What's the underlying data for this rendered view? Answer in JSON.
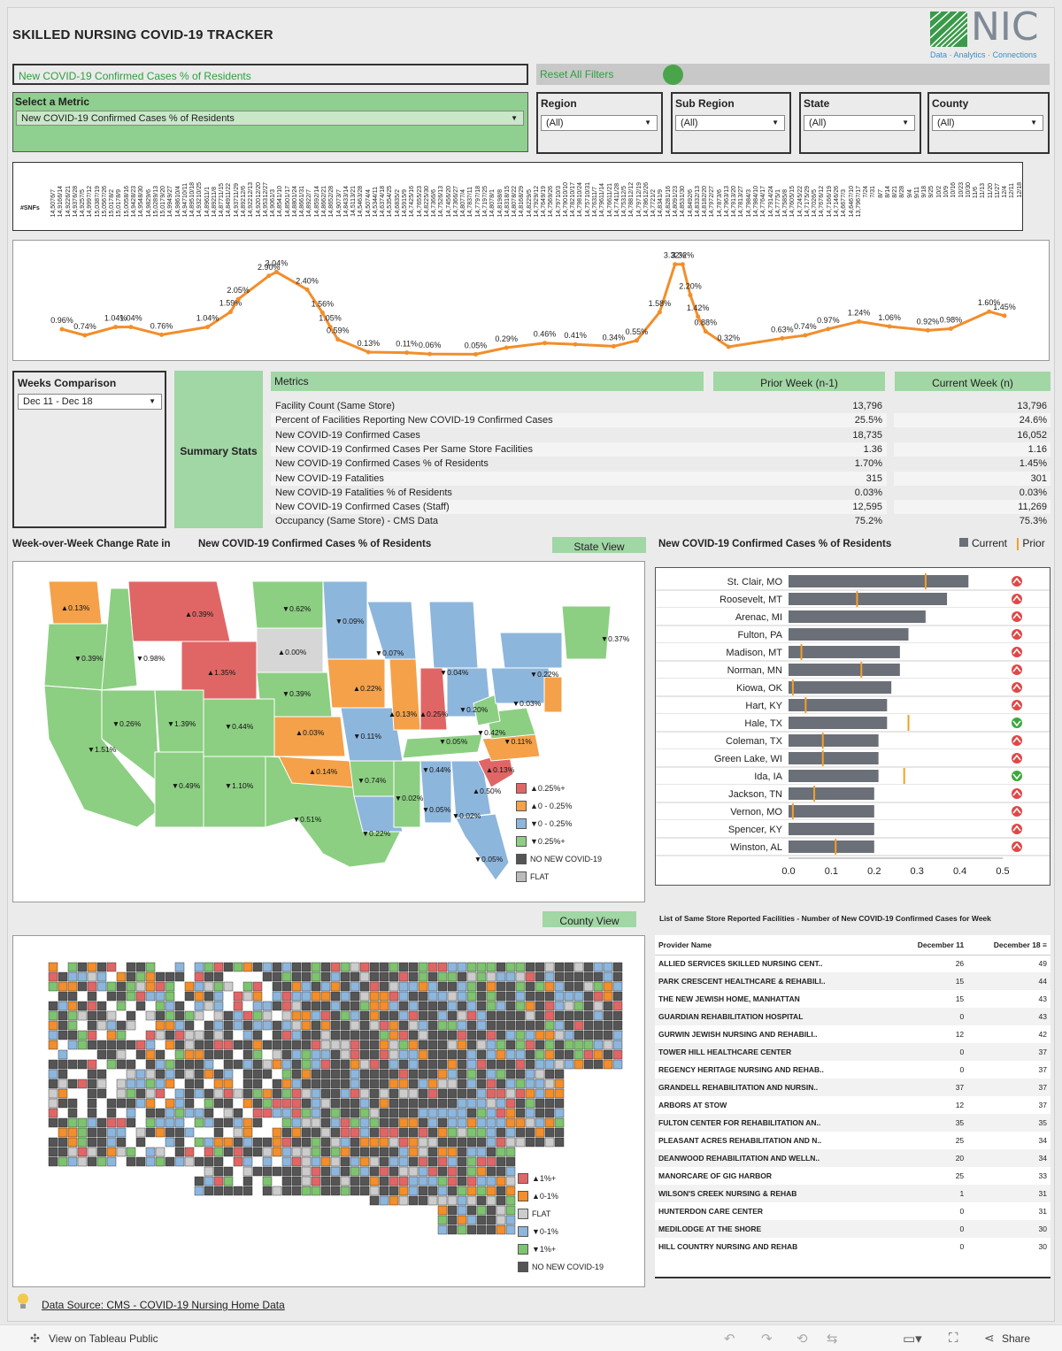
{
  "title": "SKILLED NURSING COVID-19 TRACKER",
  "logo": {
    "text": "NIC",
    "tagline": "Data · Analytics · Connections"
  },
  "metric_banner": "New COVID-19 Confirmed Cases % of Residents",
  "reset_label": "Reset All Filters",
  "filters": {
    "metric": {
      "label": "Select a Metric",
      "value": "New COVID-19 Confirmed Cases % of Residents"
    },
    "region": {
      "label": "Region",
      "value": "(All)"
    },
    "subregion": {
      "label": "Sub Region",
      "value": "(All)"
    },
    "state": {
      "label": "State",
      "value": "(All)"
    },
    "county": {
      "label": "County",
      "value": "(All)"
    }
  },
  "snf_label": "#SNFs",
  "timeline": {
    "dates": [
      "6/7",
      "6/14",
      "6/21",
      "6/28",
      "7/5",
      "7/12",
      "7/19",
      "7/26",
      "8/2",
      "8/9",
      "8/16",
      "8/23",
      "8/30",
      "9/6",
      "9/13",
      "9/20",
      "9/27",
      "10/4",
      "10/11",
      "10/18",
      "10/25",
      "11/1",
      "11/8",
      "11/15",
      "11/22",
      "11/29",
      "12/6",
      "12/13",
      "12/20",
      "12/27",
      "1/3",
      "1/10",
      "1/17",
      "1/24",
      "1/31",
      "2/7",
      "2/14",
      "2/21",
      "2/28",
      "3/7",
      "3/14",
      "3/21",
      "3/28",
      "4/4",
      "4/11",
      "4/18",
      "4/25",
      "5/2",
      "5/9",
      "5/16",
      "5/23",
      "5/30",
      "6/6",
      "6/13",
      "6/20",
      "6/27",
      "7/4",
      "7/11",
      "7/18",
      "7/25",
      "8/1",
      "8/8",
      "8/15",
      "8/22",
      "8/29",
      "9/5",
      "9/12",
      "9/19",
      "9/26",
      "10/3",
      "10/10",
      "10/17",
      "10/24",
      "10/31",
      "11/7",
      "11/14",
      "11/21",
      "11/28",
      "12/5",
      "12/12",
      "12/19",
      "12/26",
      "1/2",
      "1/9",
      "1/16",
      "1/23",
      "1/30",
      "2/6",
      "2/13",
      "2/20",
      "2/27",
      "3/6",
      "3/13",
      "3/20",
      "3/27",
      "4/3",
      "4/10",
      "4/17",
      "4/24",
      "5/1",
      "5/8",
      "5/15",
      "5/22",
      "5/29",
      "6/5",
      "6/12",
      "6/19",
      "6/26",
      "7/3",
      "7/10",
      "7/17",
      "7/24",
      "7/31",
      "8/7",
      "8/14",
      "8/21",
      "8/28",
      "9/4",
      "9/11",
      "9/18",
      "9/25",
      "10/2",
      "10/9",
      "10/16",
      "10/23",
      "10/30",
      "11/6",
      "11/13",
      "11/20",
      "11/27",
      "12/4",
      "12/11",
      "12/18"
    ],
    "snfs": [
      "14,507",
      "14,916",
      "14,922",
      "14,937",
      "14,925",
      "14,999",
      "15,038",
      "15,056",
      "15,017",
      "15,017",
      "15,005",
      "14,942",
      "14,954",
      "14,982",
      "15,028",
      "15,017",
      "14,994",
      "14,986",
      "14,947",
      "14,895",
      "14,932",
      "14,896",
      "14,892",
      "14,877",
      "14,849",
      "14,937",
      "14,892",
      "14,922",
      "14,920",
      "14,953",
      "14,906",
      "14,854",
      "14,850",
      "14,880",
      "14,866",
      "14,892",
      "14,859",
      "14,866",
      "14,865",
      "14,907",
      "14,843",
      "14,511",
      "14,546",
      "14,507",
      "14,534",
      "14,637",
      "14,535",
      "14,683",
      "14,591",
      "14,742",
      "14,765",
      "14,822",
      "14,736",
      "14,752",
      "14,745",
      "14,736",
      "14,807",
      "14,783",
      "14,779",
      "14,719",
      "14,807",
      "14,819",
      "14,831",
      "14,807",
      "14,816",
      "14,822",
      "14,792",
      "14,764",
      "14,756",
      "14,797",
      "14,790",
      "14,782",
      "14,798",
      "14,757",
      "14,763",
      "14,796",
      "14,766",
      "14,774",
      "14,753",
      "14,788",
      "14,797",
      "14,786",
      "14,772",
      "14,834",
      "14,828",
      "14,809",
      "14,853",
      "14,849",
      "14,833",
      "14,818",
      "14,797",
      "14,787",
      "14,796",
      "14,791",
      "14,781",
      "14,798",
      "14,798",
      "14,776",
      "14,791",
      "14,777",
      "14,758",
      "14,760",
      "14,724",
      "14,717",
      "14,702",
      "14,767",
      "14,716",
      "14,714",
      "14,667",
      "14,646",
      "13,796"
    ]
  },
  "line_chart": {
    "labels": [
      "0.96%",
      "0.74%",
      "1.04%",
      "1.04%",
      "0.76%",
      "1.04%",
      "1.59%",
      "2.05%",
      "2.90%",
      "3.04%",
      "2.40%",
      "1.56%",
      "1.05%",
      "0.59%",
      "0.13%",
      "0.11%",
      "0.06%",
      "0.05%",
      "0.29%",
      "0.46%",
      "0.41%",
      "0.34%",
      "0.55%",
      "1.58%",
      "3.32%",
      "3.32%",
      "2.20%",
      "1.42%",
      "0.88%",
      "0.32%",
      "0.63%",
      "0.74%",
      "0.97%",
      "1.24%",
      "1.06%",
      "0.92%",
      "0.98%",
      "1.60%",
      "1.45%"
    ]
  },
  "chart_data": {
    "type": "line",
    "title": "",
    "xlabel": "",
    "ylabel": "",
    "series_color": "#f28e2b",
    "points": [
      {
        "x": 0,
        "y": 0.96,
        "label": "0.96%"
      },
      {
        "x": 3,
        "y": 0.74,
        "label": "0.74%"
      },
      {
        "x": 7,
        "y": 1.04,
        "label": "1.04%"
      },
      {
        "x": 9,
        "y": 1.04,
        "label": "1.04%"
      },
      {
        "x": 13,
        "y": 0.76,
        "label": "0.76%"
      },
      {
        "x": 19,
        "y": 1.04,
        "label": "1.04%"
      },
      {
        "x": 22,
        "y": 1.59,
        "label": "1.59%"
      },
      {
        "x": 23,
        "y": 2.05,
        "label": "2.05%"
      },
      {
        "x": 27,
        "y": 2.9,
        "label": "2.90%"
      },
      {
        "x": 28,
        "y": 3.04,
        "label": "3.04%"
      },
      {
        "x": 32,
        "y": 2.4,
        "label": "2.40%"
      },
      {
        "x": 34,
        "y": 1.56,
        "label": "1.56%"
      },
      {
        "x": 35,
        "y": 1.05,
        "label": "1.05%"
      },
      {
        "x": 36,
        "y": 0.59,
        "label": "0.59%"
      },
      {
        "x": 40,
        "y": 0.13,
        "label": "0.13%"
      },
      {
        "x": 45,
        "y": 0.11,
        "label": "0.11%"
      },
      {
        "x": 48,
        "y": 0.06,
        "label": "0.06%"
      },
      {
        "x": 54,
        "y": 0.05,
        "label": "0.05%"
      },
      {
        "x": 58,
        "y": 0.29,
        "label": "0.29%"
      },
      {
        "x": 63,
        "y": 0.46,
        "label": "0.46%"
      },
      {
        "x": 67,
        "y": 0.41,
        "label": "0.41%"
      },
      {
        "x": 72,
        "y": 0.34,
        "label": "0.34%"
      },
      {
        "x": 75,
        "y": 0.55,
        "label": "0.55%"
      },
      {
        "x": 78,
        "y": 1.58,
        "label": "1.58%"
      },
      {
        "x": 80,
        "y": 3.32,
        "label": "3.32%"
      },
      {
        "x": 81,
        "y": 3.32,
        "label": "3.32%"
      },
      {
        "x": 82,
        "y": 2.2,
        "label": "2.20%"
      },
      {
        "x": 83,
        "y": 1.42,
        "label": "1.42%"
      },
      {
        "x": 84,
        "y": 0.88,
        "label": "0.88%"
      },
      {
        "x": 87,
        "y": 0.32,
        "label": "0.32%"
      },
      {
        "x": 94,
        "y": 0.63,
        "label": "0.63%"
      },
      {
        "x": 97,
        "y": 0.74,
        "label": "0.74%"
      },
      {
        "x": 100,
        "y": 0.97,
        "label": "0.97%"
      },
      {
        "x": 104,
        "y": 1.24,
        "label": "1.24%"
      },
      {
        "x": 108,
        "y": 1.06,
        "label": "1.06%"
      },
      {
        "x": 113,
        "y": 0.92,
        "label": "0.92%"
      },
      {
        "x": 116,
        "y": 0.98,
        "label": "0.98%"
      },
      {
        "x": 121,
        "y": 1.6,
        "label": "1.60%"
      },
      {
        "x": 123,
        "y": 1.45,
        "label": "1.45%"
      }
    ],
    "ylim": [
      0,
      3.6
    ]
  },
  "weeks": {
    "label": "Weeks Comparison",
    "value": "Dec 11 - Dec 18"
  },
  "summary": {
    "label": "Summary Stats",
    "headers": {
      "metrics": "Metrics",
      "prior": "Prior Week (n-1)",
      "current": "Current Week (n)"
    },
    "rows": [
      {
        "metric": "Facility Count (Same Store)",
        "prior": "13,796",
        "current": "13,796"
      },
      {
        "metric": "Percent of Facilities Reporting New COVID-19 Confirmed Cases",
        "prior": "25.5%",
        "current": "24.6%"
      },
      {
        "metric": "New COVID-19 Confirmed Cases",
        "prior": "18,735",
        "current": "16,052"
      },
      {
        "metric": "New COVID-19 Confirmed Cases Per Same Store Facilities",
        "prior": "1.36",
        "current": "1.16"
      },
      {
        "metric": "New COVID-19 Confirmed Cases % of Residents",
        "prior": "1.70%",
        "current": "1.45%"
      },
      {
        "metric": "New COVID-19 Fatalities",
        "prior": "315",
        "current": "301"
      },
      {
        "metric": "New COVID-19 Fatalities % of Residents",
        "prior": "0.03%",
        "current": "0.03%"
      },
      {
        "metric": "New COVID-19 Confirmed Cases (Staff)",
        "prior": "12,595",
        "current": "11,269"
      },
      {
        "metric": "Occupancy (Same Store) - CMS Data",
        "prior": "75.2%",
        "current": "75.3%"
      }
    ]
  },
  "state_map": {
    "heading_a": "Week-over-Week Change Rate in",
    "heading_b": "New COVID-19 Confirmed Cases % of Residents",
    "view_button": "State View",
    "labels": [
      {
        "t": "▲0.13%"
      },
      {
        "t": "▲0.39%"
      },
      {
        "t": "▼0.62%"
      },
      {
        "t": "▼0.39%"
      },
      {
        "t": "▼0.98%"
      },
      {
        "t": "▲1.35%"
      },
      {
        "t": "▲0.00%"
      },
      {
        "t": "▼0.09%"
      },
      {
        "t": "▼0.07%"
      },
      {
        "t": "▼0.04%"
      },
      {
        "t": "▼0.22%"
      },
      {
        "t": "▼0.37%"
      },
      {
        "t": "▼0.39%"
      },
      {
        "t": "▲0.22%"
      },
      {
        "t": "▼0.26%"
      },
      {
        "t": "▼1.39%"
      },
      {
        "t": "▼0.44%"
      },
      {
        "t": "▲0.03%"
      },
      {
        "t": "▼0.11%"
      },
      {
        "t": "▲0.13%"
      },
      {
        "t": "▲0.25%"
      },
      {
        "t": "▼0.20%"
      },
      {
        "t": "▼0.03%"
      },
      {
        "t": "▼1.51%"
      },
      {
        "t": "▼0.42%"
      },
      {
        "t": "▼0.05%"
      },
      {
        "t": "▼0.11%"
      },
      {
        "t": "▲0.14%"
      },
      {
        "t": "▼0.49%"
      },
      {
        "t": "▼1.10%"
      },
      {
        "t": "▼0.74%"
      },
      {
        "t": "▼0.44%"
      },
      {
        "t": "▲0.13%"
      },
      {
        "t": "▲0.50%"
      },
      {
        "t": "▼0.02%"
      },
      {
        "t": "▼0.05%"
      },
      {
        "t": "▼0.02%"
      },
      {
        "t": "▼0.51%"
      },
      {
        "t": "▼0.22%"
      },
      {
        "t": "▼0.05%"
      }
    ],
    "legend": [
      {
        "label": "▲0.25%+",
        "color": "#e06666"
      },
      {
        "label": "▲0 - 0.25%",
        "color": "#f4a14a"
      },
      {
        "label": "▼0 - 0.25%",
        "color": "#8db6dd"
      },
      {
        "label": "▼0.25%+",
        "color": "#8ccf82"
      },
      {
        "label": "NO NEW COVID-19",
        "color": "#555555"
      },
      {
        "label": "FLAT",
        "color": "#bbbbbb"
      }
    ]
  },
  "county_bar": {
    "title": "New COVID-19 Confirmed Cases % of Residents",
    "legend_current": "Current",
    "legend_prior": "Prior",
    "axis_ticks": [
      "0.0",
      "0.1",
      "0.2",
      "0.3",
      "0.4",
      "0.5"
    ],
    "rows": [
      {
        "name": "St. Clair, MO",
        "current": 0.42,
        "prior": 0.32,
        "up": true
      },
      {
        "name": "Roosevelt, MT",
        "current": 0.37,
        "prior": 0.16,
        "up": true
      },
      {
        "name": "Arenac, MI",
        "current": 0.32,
        "prior": null,
        "up": true
      },
      {
        "name": "Fulton, PA",
        "current": 0.28,
        "prior": null,
        "up": true
      },
      {
        "name": "Madison, MT",
        "current": 0.26,
        "prior": 0.03,
        "up": true
      },
      {
        "name": "Norman, MN",
        "current": 0.26,
        "prior": 0.17,
        "up": true
      },
      {
        "name": "Kiowa, OK",
        "current": 0.24,
        "prior": 0.01,
        "up": true
      },
      {
        "name": "Hart, KY",
        "current": 0.23,
        "prior": 0.04,
        "up": true
      },
      {
        "name": "Hale, TX",
        "current": 0.23,
        "prior": 0.28,
        "up": false
      },
      {
        "name": "Coleman, TX",
        "current": 0.21,
        "prior": 0.08,
        "up": true
      },
      {
        "name": "Green Lake, WI",
        "current": 0.21,
        "prior": 0.08,
        "up": true
      },
      {
        "name": "Ida, IA",
        "current": 0.21,
        "prior": 0.27,
        "up": false
      },
      {
        "name": "Jackson, TN",
        "current": 0.2,
        "prior": 0.06,
        "up": true
      },
      {
        "name": "Vernon, MO",
        "current": 0.2,
        "prior": 0.01,
        "up": true
      },
      {
        "name": "Spencer, KY",
        "current": 0.2,
        "prior": null,
        "up": true
      },
      {
        "name": "Winston, AL",
        "current": 0.2,
        "prior": 0.11,
        "up": true
      }
    ]
  },
  "county_view": {
    "button": "County View",
    "legend": [
      {
        "label": "▲1%+",
        "color": "#e06666"
      },
      {
        "label": "▲0-1%",
        "color": "#f28e2b"
      },
      {
        "label": "FLAT",
        "color": "#cccccc"
      },
      {
        "label": "▼0-1%",
        "color": "#8db6dd"
      },
      {
        "label": "▼1%+",
        "color": "#7ec36f"
      },
      {
        "label": "NO NEW COVID-19",
        "color": "#555555"
      }
    ]
  },
  "providers": {
    "title": "List of Same Store Reported Facilities - Number of New COVID-19 Confirmed Cases for Week",
    "col_name": "Provider Name",
    "col_prior": "December 11",
    "col_current": "December 18",
    "rows": [
      {
        "name": "ALLIED SERVICES SKILLED NURSING CENT..",
        "prior": "26",
        "current": "49"
      },
      {
        "name": "PARK CRESCENT HEALTHCARE & REHABILI..",
        "prior": "15",
        "current": "44"
      },
      {
        "name": "THE NEW JEWISH HOME, MANHATTAN",
        "prior": "15",
        "current": "43"
      },
      {
        "name": "GUARDIAN REHABILITATION HOSPITAL",
        "prior": "0",
        "current": "43"
      },
      {
        "name": "GURWIN JEWISH NURSING AND REHABILI..",
        "prior": "12",
        "current": "42"
      },
      {
        "name": "TOWER HILL HEALTHCARE CENTER",
        "prior": "0",
        "current": "37"
      },
      {
        "name": "REGENCY HERITAGE NURSING AND REHAB..",
        "prior": "0",
        "current": "37"
      },
      {
        "name": "GRANDELL REHABILITATION AND NURSIN..",
        "prior": "37",
        "current": "37"
      },
      {
        "name": "ARBORS AT STOW",
        "prior": "12",
        "current": "37"
      },
      {
        "name": "FULTON CENTER FOR REHABILITATION AN..",
        "prior": "35",
        "current": "35"
      },
      {
        "name": "PLEASANT ACRES REHABILITATION AND N..",
        "prior": "25",
        "current": "34"
      },
      {
        "name": "DEANWOOD REHABILITATION AND WELLN..",
        "prior": "20",
        "current": "34"
      },
      {
        "name": "MANORCARE OF GIG HARBOR",
        "prior": "25",
        "current": "33"
      },
      {
        "name": "WILSON'S CREEK NURSING & REHAB",
        "prior": "1",
        "current": "31"
      },
      {
        "name": "HUNTERDON CARE CENTER",
        "prior": "0",
        "current": "31"
      },
      {
        "name": "MEDILODGE AT THE SHORE",
        "prior": "0",
        "current": "30"
      },
      {
        "name": "HILL COUNTRY NURSING AND REHAB",
        "prior": "0",
        "current": "30"
      }
    ]
  },
  "data_source": "Data Source: CMS - COVID-19 Nursing Home Data",
  "footer": {
    "view_on": "View on Tableau Public",
    "share": "Share"
  }
}
